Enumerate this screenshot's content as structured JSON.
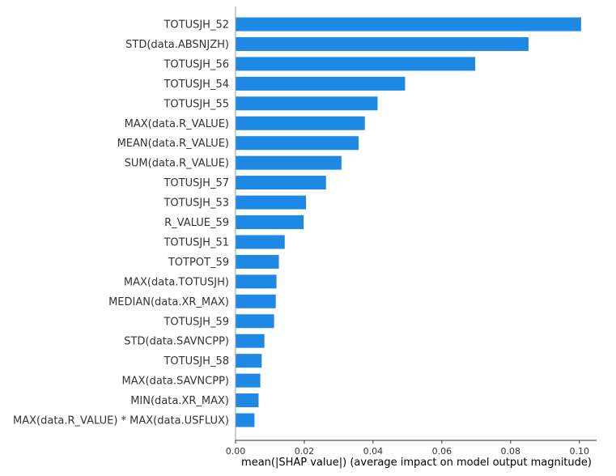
{
  "chart_data": {
    "type": "bar",
    "orientation": "horizontal",
    "categories": [
      "TOTUSJH_52",
      "STD(data.ABSNJZH)",
      "TOTUSJH_56",
      "TOTUSJH_54",
      "TOTUSJH_55",
      "MAX(data.R_VALUE)",
      "MEAN(data.R_VALUE)",
      "SUM(data.R_VALUE)",
      "TOTUSJH_57",
      "TOTUSJH_53",
      "R_VALUE_59",
      "TOTUSJH_51",
      "TOTPOT_59",
      "MAX(data.TOTUSJH)",
      "MEDIAN(data.XR_MAX)",
      "TOTUSJH_59",
      "STD(data.SAVNCPP)",
      "TOTUSJH_58",
      "MAX(data.SAVNCPP)",
      "MIN(data.XR_MAX)",
      "MAX(data.R_VALUE) * MAX(data.USFLUX)"
    ],
    "values": [
      0.1005,
      0.0852,
      0.0697,
      0.0493,
      0.0413,
      0.0376,
      0.0358,
      0.0308,
      0.0263,
      0.0205,
      0.0198,
      0.0143,
      0.0126,
      0.0119,
      0.0117,
      0.0112,
      0.0084,
      0.0076,
      0.0072,
      0.0067,
      0.0055
    ],
    "xlim": [
      0,
      0.105
    ],
    "xticks": [
      0,
      0.02,
      0.04,
      0.06,
      0.08,
      0.1
    ],
    "xtick_labels": [
      "0.00",
      "0.02",
      "0.04",
      "0.06",
      "0.08",
      "0.10"
    ],
    "xlabel": "mean(|SHAP value|) (average impact on model output magnitude)",
    "ylabel": "",
    "title": "",
    "grid": false,
    "bar_color": "#1e88e5",
    "axis_color": "#333333"
  }
}
